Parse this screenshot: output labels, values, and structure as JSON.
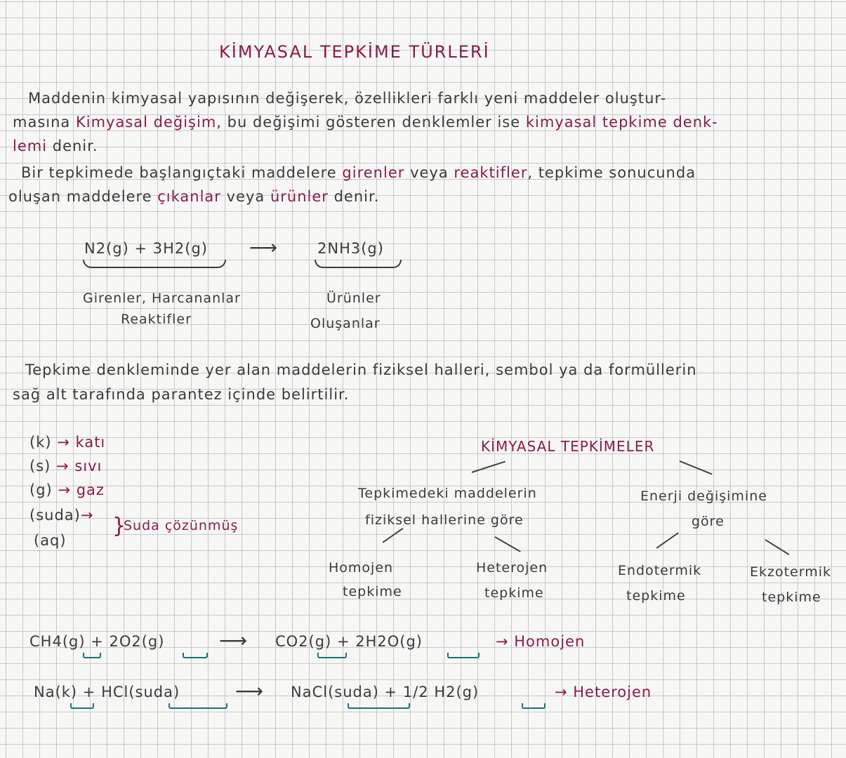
{
  "title": "KİMYASAL TEPKİME TÜRLERİ",
  "para1": {
    "l1": "Maddenin kimyasal yapısının değişerek, özellikleri farklı yeni maddeler oluştur-",
    "l2a": "masına",
    "l2b": "Kimyasal değişim",
    "l2c": ", bu değişimi gösteren denklemler ise",
    "l2d": "kimyasal tepkime denk-",
    "l3a": "lemi",
    "l3b": "denir.",
    "l4a": "Bir tepkimede başlangıçtaki maddelere",
    "l4b": "girenler",
    "l4c": "veya",
    "l4d": "reaktifler",
    "l4e": ", tepkime sonucunda",
    "l5a": "oluşan maddelere",
    "l5b": "çıkanlar",
    "l5c": "veya",
    "l5d": "ürünler",
    "l5e": "denir."
  },
  "equation1": {
    "reactants": "N2(g) + 3H2(g)",
    "arrow": "⟶",
    "products": "2NH3(g)",
    "reactants_label1": "Girenler, Harcananlar",
    "reactants_label2": "Reaktifler",
    "products_label1": "Ürünler",
    "products_label2": "Oluşanlar"
  },
  "para2": {
    "l1": "Tepkime denkleminde yer alan maddelerin fiziksel halleri, sembol ya da formüllerin",
    "l2": "sağ alt tarafında parantez içinde belirtilir."
  },
  "states": [
    {
      "symbol": "(k)",
      "arrow": "→",
      "meaning": "katı"
    },
    {
      "symbol": "(s)",
      "arrow": "→",
      "meaning": "sıvı"
    },
    {
      "symbol": "(g)",
      "arrow": "→",
      "meaning": "gaz"
    },
    {
      "symbol": "(suda)",
      "arrow": "→"
    },
    {
      "symbol": "(aq)"
    }
  ],
  "states_group_label": "Suda çözünmüş",
  "tree": {
    "root": "KİMYASAL TEPKİMELER",
    "left": "Tepkimedeki maddelerin fiziksel hallerine göre",
    "left_l1": "Tepkimedeki maddelerin",
    "left_l2": "fiziksel hallerine göre",
    "right_l1": "Enerji değişimine",
    "right_l2": "göre",
    "leaves": [
      {
        "l1": "Homojen",
        "l2": "tepkime"
      },
      {
        "l1": "Heterojen",
        "l2": "tepkime"
      },
      {
        "l1": "Endotermik",
        "l2": "tepkime"
      },
      {
        "l1": "Ekzotermik",
        "l2": "tepkime"
      }
    ]
  },
  "examples": [
    {
      "left": "CH4(g) + 2O2(g)",
      "arrow": "⟶",
      "right": "CO2(g) + 2H2O(g)",
      "result": "→ Homojen"
    },
    {
      "left": "Na(k) + HCl(suda)",
      "arrow": "⟶",
      "right": "NaCl(suda) + 1/2 H2(g)",
      "result": "→ Heterojen"
    }
  ],
  "colors": {
    "ink": "#3b3b3b",
    "accent": "#8a1b4c",
    "underline": "#1e6f7a",
    "grid": "#c9c9c9"
  }
}
